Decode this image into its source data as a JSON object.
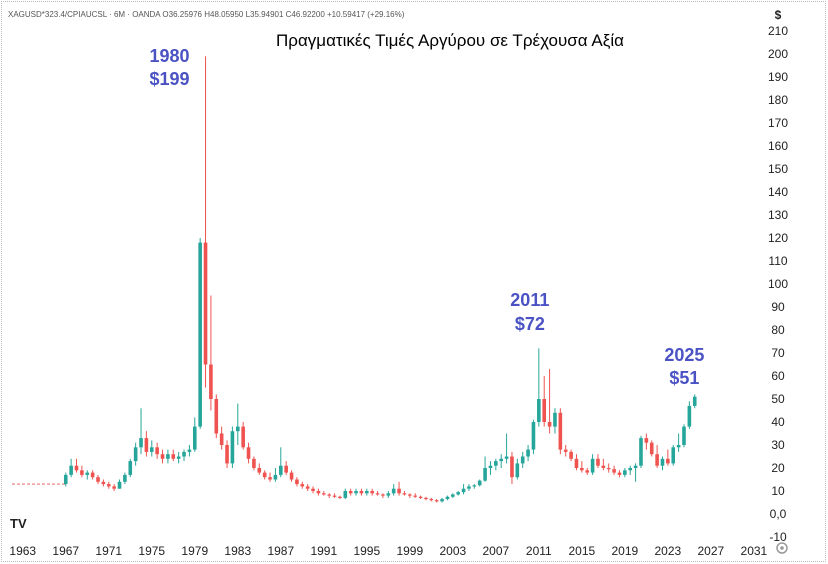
{
  "chart_data": {
    "type": "candlestick",
    "ticker_info": "XAGUSD*323.4/CPIAUCSL · 6M · OANDA  O36.25976 H48.05950 L35.94901 C46.92200 +10.59417 (+29.16%)",
    "title": "Πραγματικές Τιμές Αργύρου σε Τρέχουσα Αξία",
    "y_unit": "$",
    "ylim": [
      -10,
      210
    ],
    "y_ticks": [
      "210",
      "200",
      "190",
      "180",
      "170",
      "160",
      "150",
      "140",
      "130",
      "120",
      "110",
      "100",
      "90",
      "80",
      "70",
      "60",
      "50",
      "40",
      "30",
      "20",
      "10",
      "0,0",
      "-10"
    ],
    "y_tick_values": [
      210,
      200,
      190,
      180,
      170,
      160,
      150,
      140,
      130,
      120,
      110,
      100,
      90,
      80,
      70,
      60,
      50,
      40,
      30,
      20,
      10,
      0,
      -10
    ],
    "x_ticks": [
      "1963",
      "1967",
      "1971",
      "1975",
      "1979",
      "1983",
      "1987",
      "1991",
      "1995",
      "1999",
      "2003",
      "2007",
      "2011",
      "2015",
      "2019",
      "2023",
      "2027",
      "2031"
    ],
    "x_tick_values": [
      1963,
      1967,
      1971,
      1975,
      1979,
      1983,
      1987,
      1991,
      1995,
      1999,
      2003,
      2007,
      2011,
      2015,
      2019,
      2023,
      2027,
      2031
    ],
    "xlim": [
      1962.0,
      2032.5
    ],
    "colors": {
      "up": "#26a69a",
      "down": "#ef5350",
      "annotation": "#4a52c4",
      "flat": "#ef9a9a"
    },
    "flat_line": {
      "x_start": 1962.0,
      "x_end": 1967.0,
      "value": 13
    },
    "annotations": [
      {
        "year_label": "1980",
        "price_label": "$199",
        "x": 1980,
        "y": 199
      },
      {
        "year_label": "2011",
        "price_label": "$72",
        "x": 2011,
        "y": 72
      },
      {
        "year_label": "2025",
        "price_label": "$51",
        "x": 2025,
        "y": 51
      }
    ],
    "candles": [
      {
        "t": 1967.0,
        "o": 13,
        "h": 18,
        "l": 12,
        "c": 17
      },
      {
        "t": 1967.5,
        "o": 17,
        "h": 24,
        "l": 16,
        "c": 21
      },
      {
        "t": 1968.0,
        "o": 21,
        "h": 24,
        "l": 18,
        "c": 19
      },
      {
        "t": 1968.5,
        "o": 19,
        "h": 21,
        "l": 16,
        "c": 17
      },
      {
        "t": 1969.0,
        "o": 17,
        "h": 19,
        "l": 15,
        "c": 18
      },
      {
        "t": 1969.5,
        "o": 18,
        "h": 19,
        "l": 15,
        "c": 16
      },
      {
        "t": 1970.0,
        "o": 16,
        "h": 17,
        "l": 13,
        "c": 14
      },
      {
        "t": 1970.5,
        "o": 14,
        "h": 15,
        "l": 12,
        "c": 13
      },
      {
        "t": 1971.0,
        "o": 13,
        "h": 14,
        "l": 11,
        "c": 12
      },
      {
        "t": 1971.5,
        "o": 12,
        "h": 13,
        "l": 10,
        "c": 11
      },
      {
        "t": 1972.0,
        "o": 11,
        "h": 15,
        "l": 11,
        "c": 14
      },
      {
        "t": 1972.5,
        "o": 14,
        "h": 18,
        "l": 13,
        "c": 17
      },
      {
        "t": 1973.0,
        "o": 17,
        "h": 24,
        "l": 16,
        "c": 23
      },
      {
        "t": 1973.5,
        "o": 23,
        "h": 31,
        "l": 21,
        "c": 29
      },
      {
        "t": 1974.0,
        "o": 29,
        "h": 46,
        "l": 26,
        "c": 33
      },
      {
        "t": 1974.5,
        "o": 33,
        "h": 36,
        "l": 25,
        "c": 27
      },
      {
        "t": 1975.0,
        "o": 27,
        "h": 32,
        "l": 25,
        "c": 29
      },
      {
        "t": 1975.5,
        "o": 29,
        "h": 31,
        "l": 24,
        "c": 26
      },
      {
        "t": 1976.0,
        "o": 26,
        "h": 28,
        "l": 22,
        "c": 24
      },
      {
        "t": 1976.5,
        "o": 24,
        "h": 28,
        "l": 22,
        "c": 26
      },
      {
        "t": 1977.0,
        "o": 26,
        "h": 28,
        "l": 23,
        "c": 24
      },
      {
        "t": 1977.5,
        "o": 24,
        "h": 27,
        "l": 22,
        "c": 25
      },
      {
        "t": 1978.0,
        "o": 25,
        "h": 28,
        "l": 23,
        "c": 27
      },
      {
        "t": 1978.5,
        "o": 27,
        "h": 30,
        "l": 25,
        "c": 28
      },
      {
        "t": 1979.0,
        "o": 28,
        "h": 42,
        "l": 27,
        "c": 38
      },
      {
        "t": 1979.5,
        "o": 38,
        "h": 120,
        "l": 37,
        "c": 118
      },
      {
        "t": 1980.0,
        "o": 118,
        "h": 199,
        "l": 55,
        "c": 65
      },
      {
        "t": 1980.5,
        "o": 65,
        "h": 95,
        "l": 45,
        "c": 50
      },
      {
        "t": 1981.0,
        "o": 50,
        "h": 52,
        "l": 33,
        "c": 35
      },
      {
        "t": 1981.5,
        "o": 35,
        "h": 38,
        "l": 28,
        "c": 30
      },
      {
        "t": 1982.0,
        "o": 30,
        "h": 32,
        "l": 20,
        "c": 22
      },
      {
        "t": 1982.5,
        "o": 22,
        "h": 38,
        "l": 20,
        "c": 36
      },
      {
        "t": 1983.0,
        "o": 36,
        "h": 48,
        "l": 30,
        "c": 38
      },
      {
        "t": 1983.5,
        "o": 38,
        "h": 40,
        "l": 28,
        "c": 29
      },
      {
        "t": 1984.0,
        "o": 29,
        "h": 31,
        "l": 22,
        "c": 24
      },
      {
        "t": 1984.5,
        "o": 24,
        "h": 25,
        "l": 19,
        "c": 20
      },
      {
        "t": 1985.0,
        "o": 20,
        "h": 22,
        "l": 17,
        "c": 18
      },
      {
        "t": 1985.5,
        "o": 18,
        "h": 19,
        "l": 15,
        "c": 16
      },
      {
        "t": 1986.0,
        "o": 16,
        "h": 18,
        "l": 14,
        "c": 15
      },
      {
        "t": 1986.5,
        "o": 15,
        "h": 20,
        "l": 14,
        "c": 17
      },
      {
        "t": 1987.0,
        "o": 17,
        "h": 29,
        "l": 16,
        "c": 21
      },
      {
        "t": 1987.5,
        "o": 21,
        "h": 23,
        "l": 17,
        "c": 18
      },
      {
        "t": 1988.0,
        "o": 18,
        "h": 19,
        "l": 14,
        "c": 15
      },
      {
        "t": 1988.5,
        "o": 15,
        "h": 16,
        "l": 12,
        "c": 13
      },
      {
        "t": 1989.0,
        "o": 13,
        "h": 14,
        "l": 11,
        "c": 12
      },
      {
        "t": 1989.5,
        "o": 12,
        "h": 13,
        "l": 10,
        "c": 11
      },
      {
        "t": 1990.0,
        "o": 11,
        "h": 12,
        "l": 9,
        "c": 10
      },
      {
        "t": 1990.5,
        "o": 10,
        "h": 11,
        "l": 8,
        "c": 9
      },
      {
        "t": 1991.0,
        "o": 9,
        "h": 10,
        "l": 8,
        "c": 8.5
      },
      {
        "t": 1991.5,
        "o": 8.5,
        "h": 9,
        "l": 7,
        "c": 8
      },
      {
        "t": 1992.0,
        "o": 8,
        "h": 9,
        "l": 7,
        "c": 7.5
      },
      {
        "t": 1992.5,
        "o": 7.5,
        "h": 8,
        "l": 6.5,
        "c": 7
      },
      {
        "t": 1993.0,
        "o": 7,
        "h": 11,
        "l": 6.5,
        "c": 10
      },
      {
        "t": 1993.5,
        "o": 10,
        "h": 11,
        "l": 8,
        "c": 9
      },
      {
        "t": 1994.0,
        "o": 9,
        "h": 11,
        "l": 8,
        "c": 10
      },
      {
        "t": 1994.5,
        "o": 10,
        "h": 11,
        "l": 8,
        "c": 9
      },
      {
        "t": 1995.0,
        "o": 9,
        "h": 11,
        "l": 8,
        "c": 10
      },
      {
        "t": 1995.5,
        "o": 10,
        "h": 11,
        "l": 8,
        "c": 9
      },
      {
        "t": 1996.0,
        "o": 9,
        "h": 10,
        "l": 8,
        "c": 8.5
      },
      {
        "t": 1996.5,
        "o": 8.5,
        "h": 9,
        "l": 7,
        "c": 8
      },
      {
        "t": 1997.0,
        "o": 8,
        "h": 10,
        "l": 7,
        "c": 9
      },
      {
        "t": 1997.5,
        "o": 9,
        "h": 13,
        "l": 8,
        "c": 11
      },
      {
        "t": 1998.0,
        "o": 11,
        "h": 14,
        "l": 8,
        "c": 9
      },
      {
        "t": 1998.5,
        "o": 9,
        "h": 10,
        "l": 8,
        "c": 8.5
      },
      {
        "t": 1999.0,
        "o": 8.5,
        "h": 9,
        "l": 7,
        "c": 8
      },
      {
        "t": 1999.5,
        "o": 8,
        "h": 9,
        "l": 7,
        "c": 7.5
      },
      {
        "t": 2000.0,
        "o": 7.5,
        "h": 8,
        "l": 6.5,
        "c": 7
      },
      {
        "t": 2000.5,
        "o": 7,
        "h": 7.5,
        "l": 6,
        "c": 6.5
      },
      {
        "t": 2001.0,
        "o": 6.5,
        "h": 7,
        "l": 5.5,
        "c": 6
      },
      {
        "t": 2001.5,
        "o": 6,
        "h": 6.5,
        "l": 5,
        "c": 5.5
      },
      {
        "t": 2002.0,
        "o": 5.5,
        "h": 7,
        "l": 5,
        "c": 6.5
      },
      {
        "t": 2002.5,
        "o": 6.5,
        "h": 8,
        "l": 6,
        "c": 7.5
      },
      {
        "t": 2003.0,
        "o": 7.5,
        "h": 9,
        "l": 7,
        "c": 8.5
      },
      {
        "t": 2003.5,
        "o": 8.5,
        "h": 10,
        "l": 8,
        "c": 9.5
      },
      {
        "t": 2004.0,
        "o": 9.5,
        "h": 13,
        "l": 8.5,
        "c": 11
      },
      {
        "t": 2004.5,
        "o": 11,
        "h": 13,
        "l": 10,
        "c": 12
      },
      {
        "t": 2005.0,
        "o": 12,
        "h": 13,
        "l": 11,
        "c": 12.5
      },
      {
        "t": 2005.5,
        "o": 12.5,
        "h": 15,
        "l": 12,
        "c": 14.5
      },
      {
        "t": 2006.0,
        "o": 14.5,
        "h": 25,
        "l": 14,
        "c": 20
      },
      {
        "t": 2006.5,
        "o": 20,
        "h": 23,
        "l": 17,
        "c": 21
      },
      {
        "t": 2007.0,
        "o": 21,
        "h": 24,
        "l": 19,
        "c": 23
      },
      {
        "t": 2007.5,
        "o": 23,
        "h": 26,
        "l": 20,
        "c": 24
      },
      {
        "t": 2008.0,
        "o": 24,
        "h": 35,
        "l": 22,
        "c": 25
      },
      {
        "t": 2008.5,
        "o": 25,
        "h": 27,
        "l": 13,
        "c": 16
      },
      {
        "t": 2009.0,
        "o": 16,
        "h": 24,
        "l": 15,
        "c": 22
      },
      {
        "t": 2009.5,
        "o": 22,
        "h": 27,
        "l": 20,
        "c": 25
      },
      {
        "t": 2010.0,
        "o": 25,
        "h": 30,
        "l": 23,
        "c": 28
      },
      {
        "t": 2010.5,
        "o": 28,
        "h": 41,
        "l": 26,
        "c": 40
      },
      {
        "t": 2011.0,
        "o": 40,
        "h": 72,
        "l": 38,
        "c": 50
      },
      {
        "t": 2011.5,
        "o": 50,
        "h": 60,
        "l": 38,
        "c": 40
      },
      {
        "t": 2012.0,
        "o": 40,
        "h": 63,
        "l": 35,
        "c": 38
      },
      {
        "t": 2012.5,
        "o": 38,
        "h": 46,
        "l": 35,
        "c": 44
      },
      {
        "t": 2013.0,
        "o": 44,
        "h": 46,
        "l": 26,
        "c": 28
      },
      {
        "t": 2013.5,
        "o": 28,
        "h": 30,
        "l": 25,
        "c": 27
      },
      {
        "t": 2014.0,
        "o": 27,
        "h": 28,
        "l": 23,
        "c": 24
      },
      {
        "t": 2014.5,
        "o": 24,
        "h": 26,
        "l": 19,
        "c": 20
      },
      {
        "t": 2015.0,
        "o": 20,
        "h": 23,
        "l": 18,
        "c": 19
      },
      {
        "t": 2015.5,
        "o": 19,
        "h": 20,
        "l": 17,
        "c": 18
      },
      {
        "t": 2016.0,
        "o": 18,
        "h": 26,
        "l": 17,
        "c": 24
      },
      {
        "t": 2016.5,
        "o": 24,
        "h": 26,
        "l": 20,
        "c": 21
      },
      {
        "t": 2017.0,
        "o": 21,
        "h": 24,
        "l": 19,
        "c": 20
      },
      {
        "t": 2017.5,
        "o": 20,
        "h": 22,
        "l": 18,
        "c": 19.5
      },
      {
        "t": 2018.0,
        "o": 19.5,
        "h": 21,
        "l": 17,
        "c": 18
      },
      {
        "t": 2018.5,
        "o": 18,
        "h": 19,
        "l": 16,
        "c": 17
      },
      {
        "t": 2019.0,
        "o": 17,
        "h": 20,
        "l": 16,
        "c": 19
      },
      {
        "t": 2019.5,
        "o": 19,
        "h": 21,
        "l": 17,
        "c": 20
      },
      {
        "t": 2020.0,
        "o": 20,
        "h": 22,
        "l": 14,
        "c": 21
      },
      {
        "t": 2020.5,
        "o": 21,
        "h": 34,
        "l": 20,
        "c": 33
      },
      {
        "t": 2021.0,
        "o": 33,
        "h": 35,
        "l": 28,
        "c": 31
      },
      {
        "t": 2021.5,
        "o": 31,
        "h": 32,
        "l": 25,
        "c": 26
      },
      {
        "t": 2022.0,
        "o": 26,
        "h": 30,
        "l": 20,
        "c": 21
      },
      {
        "t": 2022.5,
        "o": 21,
        "h": 25,
        "l": 19,
        "c": 24
      },
      {
        "t": 2023.0,
        "o": 24,
        "h": 28,
        "l": 21,
        "c": 22
      },
      {
        "t": 2023.5,
        "o": 22,
        "h": 30,
        "l": 21,
        "c": 29
      },
      {
        "t": 2024.0,
        "o": 29,
        "h": 35,
        "l": 27,
        "c": 30
      },
      {
        "t": 2024.5,
        "o": 30,
        "h": 39,
        "l": 29,
        "c": 38
      },
      {
        "t": 2025.0,
        "o": 38,
        "h": 49,
        "l": 37,
        "c": 47
      },
      {
        "t": 2025.5,
        "o": 47,
        "h": 52,
        "l": 46,
        "c": 51
      }
    ]
  },
  "watermark": {
    "text": "TV"
  }
}
